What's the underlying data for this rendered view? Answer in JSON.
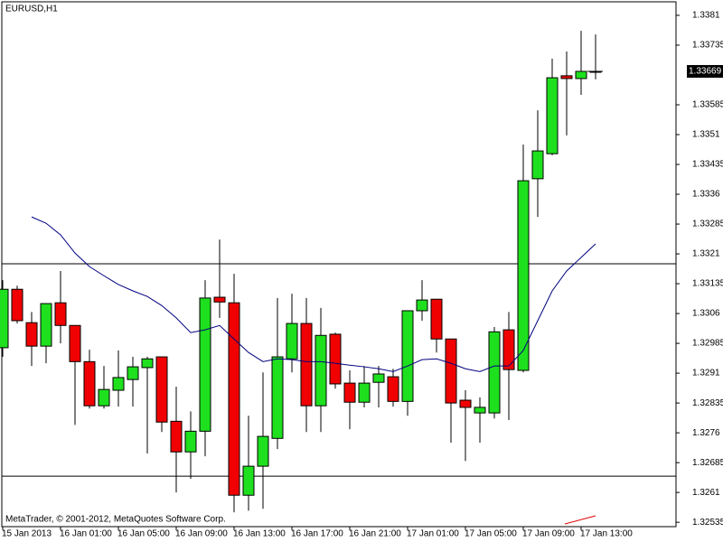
{
  "chart_data": {
    "type": "candlestick",
    "title": "EURUSD,H1",
    "footer": "MetaTrader, © 2001-2012, MetaQuotes Software Corp.",
    "categories": [
      "15 Jan 2013",
      null,
      null,
      null,
      "16 Jan 01:00",
      null,
      null,
      null,
      "16 Jan 05:00",
      null,
      null,
      null,
      "16 Jan 09:00",
      null,
      null,
      null,
      "16 Jan 13:00",
      null,
      null,
      null,
      "16 Jan 17:00",
      null,
      null,
      null,
      "16 Jan 21:00",
      null,
      null,
      null,
      "17 Jan 01:00",
      null,
      null,
      null,
      "17 Jan 05:00",
      null,
      null,
      null,
      "17 Jan 09:00",
      null,
      null,
      null,
      "17 Jan 13:00",
      null
    ],
    "open": [
      1.32974,
      1.33121,
      1.33037,
      1.32978,
      1.33087,
      1.3303,
      1.32939,
      1.32828,
      1.32867,
      1.32894,
      1.32924,
      1.32951,
      1.32789,
      1.32712,
      1.32764,
      1.33101,
      1.33087,
      1.32603,
      1.32676,
      1.32746,
      1.32946,
      1.33035,
      1.32828,
      1.33008,
      1.32885,
      1.32837,
      1.32887,
      1.32901,
      1.32839,
      1.33067,
      1.33096,
      1.32996,
      1.32842,
      1.3281,
      1.3281,
      1.33019,
      1.32917,
      1.33399,
      1.33462,
      1.33658,
      1.33651,
      1.33669
    ],
    "high": [
      1.33144,
      1.3313,
      1.33064,
      1.33085,
      1.33167,
      1.3303,
      1.32969,
      1.32928,
      1.32967,
      1.32951,
      1.32951,
      1.32951,
      1.32876,
      1.32814,
      1.33144,
      1.33246,
      1.3316,
      1.32803,
      1.32912,
      1.33099,
      1.3311,
      1.33099,
      1.33074,
      1.33012,
      1.32917,
      1.32928,
      1.32928,
      1.32921,
      1.33067,
      1.33144,
      1.33096,
      1.32996,
      1.32867,
      1.32849,
      1.33026,
      1.33064,
      1.33485,
      1.33571,
      1.33701,
      1.33719,
      1.33771,
      1.33762
    ],
    "low": [
      1.32951,
      1.33035,
      1.32928,
      1.32935,
      1.32985,
      1.3278,
      1.32821,
      1.32821,
      1.32826,
      1.32826,
      1.32708,
      1.32762,
      1.3261,
      1.32644,
      1.32701,
      1.33049,
      1.3256,
      1.32564,
      1.32569,
      1.32719,
      1.32912,
      1.32762,
      1.32762,
      1.32871,
      1.32769,
      1.32824,
      1.32824,
      1.32826,
      1.32803,
      1.33042,
      1.32962,
      1.32735,
      1.32689,
      1.32735,
      1.32796,
      1.32792,
      1.32912,
      1.33303,
      1.33458,
      1.33508,
      1.3361,
      1.33649
    ],
    "close": [
      1.33121,
      1.33042,
      1.32978,
      1.33085,
      1.3303,
      1.32939,
      1.32828,
      1.32869,
      1.32899,
      1.32926,
      1.32946,
      1.32787,
      1.32712,
      1.32764,
      1.33099,
      1.33089,
      1.32603,
      1.32676,
      1.32751,
      1.32951,
      1.33035,
      1.32828,
      1.33005,
      1.32883,
      1.32837,
      1.32885,
      1.32908,
      1.32839,
      1.33067,
      1.33094,
      1.32996,
      1.32835,
      1.32824,
      1.32824,
      1.33014,
      1.32919,
      1.33394,
      1.33469,
      1.33653,
      1.33651,
      1.33669,
      1.33669
    ],
    "up_color": "#1ee01e",
    "down_color": "#f00000",
    "ma_values": [
      null,
      null,
      1.33303,
      1.33287,
      1.33258,
      1.33212,
      1.33178,
      1.33155,
      1.33133,
      1.33117,
      1.33103,
      1.3308,
      1.33049,
      1.33012,
      1.33019,
      1.3303,
      1.32996,
      1.32962,
      1.32939,
      1.32946,
      1.32944,
      1.32939,
      1.32939,
      1.32935,
      1.3293,
      1.32926,
      1.32921,
      1.32914,
      1.32928,
      1.32944,
      1.32946,
      1.32935,
      1.32921,
      1.32914,
      1.32928,
      1.32928,
      1.32967,
      1.33042,
      1.33117,
      1.33167,
      1.33201,
      1.33235
    ],
    "ma_color": "#000080",
    "hlines": [
      1.33185,
      1.32651
    ],
    "current_price": 1.33669,
    "ylim": [
      1.32524,
      1.33844
    ],
    "yticks": [
      1.32535,
      1.3261,
      {
        "value": 1.32685,
        "label": "1.32685"
      },
      1.3276,
      {
        "value": 1.32835,
        "label": "1.32835"
      },
      1.3291,
      {
        "value": 1.32985,
        "label": "1.32985"
      },
      1.3306,
      {
        "value": 1.33135,
        "label": "1.33135"
      },
      1.3321,
      {
        "value": 1.33285,
        "label": "1.33285"
      },
      1.3336,
      {
        "value": 1.33435,
        "label": "1.33435"
      },
      1.3351,
      {
        "value": 1.33585,
        "label": "1.33585"
      },
      {
        "value": 1.33735,
        "label": "1.33735"
      },
      1.3381
    ],
    "grid": false
  }
}
